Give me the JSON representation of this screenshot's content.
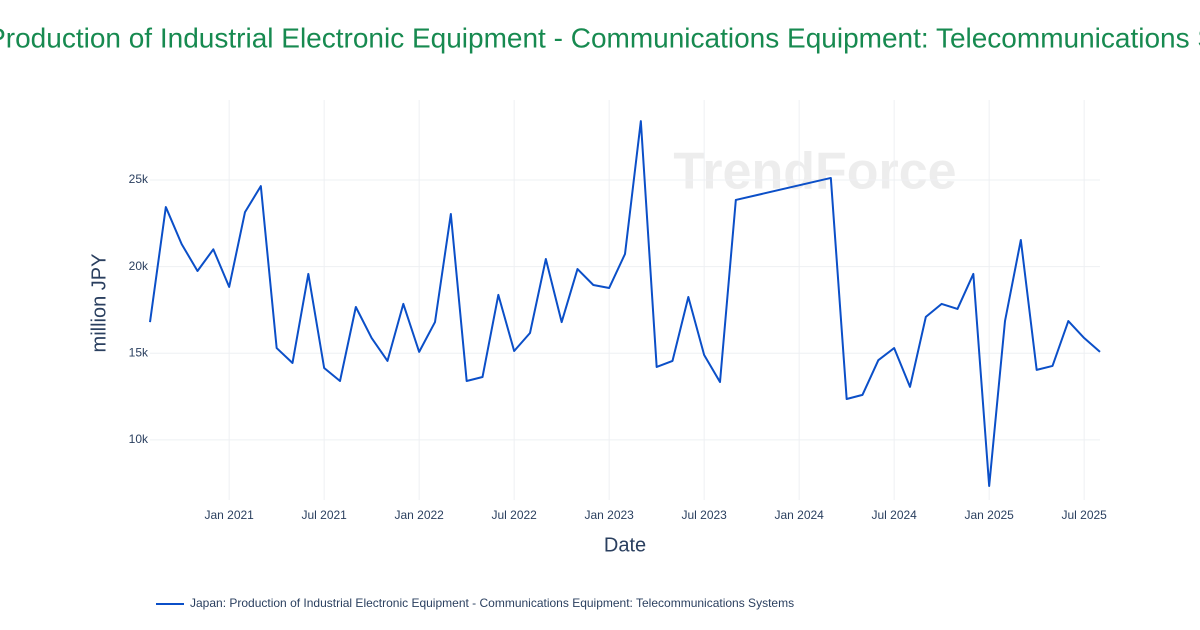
{
  "chart_data": {
    "type": "line",
    "title": "Japan: Production of Industrial Electronic Equipment - Communications Equipment: Telecommunications Systems",
    "watermark": "TrendForce",
    "x_label": "Date",
    "y_label": "million JPY",
    "x": [
      "2020-08",
      "2020-09",
      "2020-10",
      "2020-11",
      "2020-12",
      "2021-01",
      "2021-02",
      "2021-03",
      "2021-04",
      "2021-05",
      "2021-06",
      "2021-07",
      "2021-08",
      "2021-09",
      "2021-10",
      "2021-11",
      "2021-12",
      "2022-01",
      "2022-02",
      "2022-03",
      "2022-04",
      "2022-05",
      "2022-06",
      "2022-07",
      "2022-08",
      "2022-09",
      "2022-10",
      "2022-11",
      "2022-12",
      "2023-01",
      "2023-02",
      "2023-03",
      "2023-04",
      "2023-05",
      "2023-06",
      "2023-07",
      "2023-08",
      "2023-09",
      "2024-03",
      "2024-04",
      "2024-05",
      "2024-06",
      "2024-07",
      "2024-08",
      "2024-09",
      "2024-10",
      "2024-11",
      "2024-12",
      "2025-01",
      "2025-02",
      "2025-03",
      "2025-04",
      "2025-05",
      "2025-06",
      "2025-07",
      "2025-08"
    ],
    "series": [
      {
        "name": "Japan: Production of Industrial Electronic Equipment - Communications Equipment: Telecommunications Systems",
        "color": "#0b4fc8",
        "values": [
          16800,
          23440,
          21300,
          19750,
          21000,
          18830,
          23150,
          24650,
          15300,
          14440,
          19580,
          14150,
          13400,
          17670,
          15880,
          14560,
          17850,
          15080,
          16800,
          23040,
          13400,
          13630,
          18370,
          15130,
          16170,
          20440,
          16800,
          19860,
          18940,
          18770,
          20730,
          28400,
          14210,
          14560,
          18250,
          14900,
          13340,
          23850,
          25120,
          12360,
          12600,
          14600,
          15300,
          13060,
          17100,
          17850,
          17560,
          19580,
          7340,
          16860,
          21540,
          14040,
          14270,
          16860,
          15880,
          15080
        ]
      }
    ],
    "xlim": [
      "2020-08",
      "2025-08"
    ],
    "xticks": [
      {
        "value": "2021-01",
        "label": "Jan 2021"
      },
      {
        "value": "2021-07",
        "label": "Jul 2021"
      },
      {
        "value": "2022-01",
        "label": "Jan 2022"
      },
      {
        "value": "2022-07",
        "label": "Jul 2022"
      },
      {
        "value": "2023-01",
        "label": "Jan 2023"
      },
      {
        "value": "2023-07",
        "label": "Jul 2023"
      },
      {
        "value": "2024-01",
        "label": "Jan 2024"
      },
      {
        "value": "2024-07",
        "label": "Jul 2024"
      },
      {
        "value": "2025-01",
        "label": "Jan 2025"
      },
      {
        "value": "2025-07",
        "label": "Jul 2025"
      }
    ],
    "ylim": [
      6530,
      29620
    ],
    "yticks": [
      {
        "value": 10000,
        "label": "10k"
      },
      {
        "value": 15000,
        "label": "15k"
      },
      {
        "value": 20000,
        "label": "20k"
      },
      {
        "value": 25000,
        "label": "25k"
      }
    ],
    "grid": true
  }
}
